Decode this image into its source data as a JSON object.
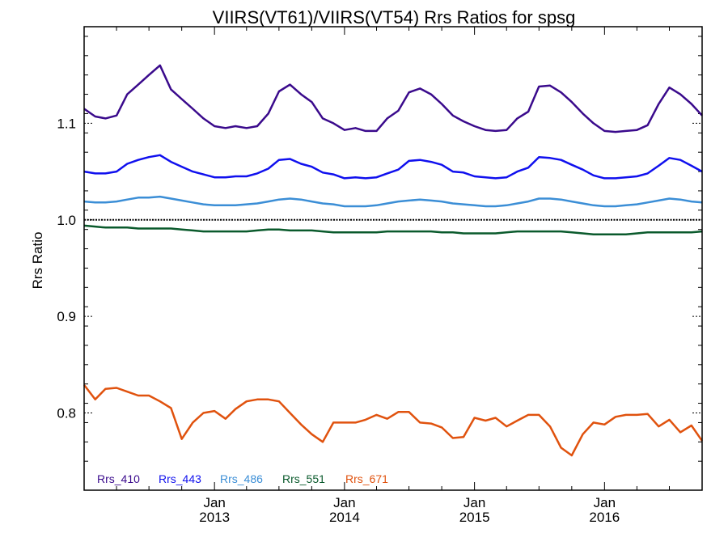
{
  "chart_data": {
    "type": "line",
    "title": "VIIRS(VT61)/VIIRS(VT54)  Rrs Ratios for spsg",
    "xlabel": "",
    "ylabel": "Rrs Ratio",
    "ylim": [
      0.72,
      1.2
    ],
    "xlim": [
      "2012-01-01",
      "2016-10-01"
    ],
    "x_ticks": [
      {
        "month": "Jan",
        "year": "2013",
        "date": "2013-01-01"
      },
      {
        "month": "Jan",
        "year": "2014",
        "date": "2014-01-01"
      },
      {
        "month": "Jan",
        "year": "2015",
        "date": "2015-01-01"
      },
      {
        "month": "Jan",
        "year": "2016",
        "date": "2016-01-01"
      }
    ],
    "y_ticks": [
      {
        "value": 0.8,
        "label": "0.8"
      },
      {
        "value": 0.9,
        "label": "0.9"
      },
      {
        "value": 1.0,
        "label": "1.0"
      },
      {
        "value": 1.1,
        "label": "1.1"
      }
    ],
    "reference_line": 1.0,
    "x": [
      "2012-01-01",
      "2012-02-01",
      "2012-03-01",
      "2012-04-01",
      "2012-05-01",
      "2012-06-01",
      "2012-07-01",
      "2012-08-01",
      "2012-09-01",
      "2012-10-01",
      "2012-11-01",
      "2012-12-01",
      "2013-01-01",
      "2013-02-01",
      "2013-03-01",
      "2013-04-01",
      "2013-05-01",
      "2013-06-01",
      "2013-07-01",
      "2013-08-01",
      "2013-09-01",
      "2013-10-01",
      "2013-11-01",
      "2013-12-01",
      "2014-01-01",
      "2014-02-01",
      "2014-03-01",
      "2014-04-01",
      "2014-05-01",
      "2014-06-01",
      "2014-07-01",
      "2014-08-01",
      "2014-09-01",
      "2014-10-01",
      "2014-11-01",
      "2014-12-01",
      "2015-01-01",
      "2015-02-01",
      "2015-03-01",
      "2015-04-01",
      "2015-05-01",
      "2015-06-01",
      "2015-07-01",
      "2015-08-01",
      "2015-09-01",
      "2015-10-01",
      "2015-11-01",
      "2015-12-01",
      "2016-01-01",
      "2016-02-01",
      "2016-03-01",
      "2016-04-01",
      "2016-05-01",
      "2016-06-01",
      "2016-07-01",
      "2016-08-01",
      "2016-09-01",
      "2016-10-01"
    ],
    "series": [
      {
        "name": "Rrs_410",
        "color": "#3a0a8c",
        "values": [
          1.115,
          1.107,
          1.105,
          1.108,
          1.13,
          1.14,
          1.15,
          1.16,
          1.135,
          1.125,
          1.115,
          1.105,
          1.097,
          1.095,
          1.097,
          1.095,
          1.097,
          1.11,
          1.133,
          1.14,
          1.13,
          1.122,
          1.105,
          1.1,
          1.093,
          1.095,
          1.092,
          1.092,
          1.105,
          1.113,
          1.132,
          1.136,
          1.13,
          1.12,
          1.108,
          1.102,
          1.097,
          1.093,
          1.092,
          1.093,
          1.105,
          1.112,
          1.138,
          1.139,
          1.132,
          1.122,
          1.11,
          1.1,
          1.092,
          1.091,
          1.092,
          1.093,
          1.098,
          1.12,
          1.137,
          1.13,
          1.12,
          1.108
        ]
      },
      {
        "name": "Rrs_443",
        "color": "#1010ee",
        "values": [
          1.05,
          1.048,
          1.048,
          1.05,
          1.058,
          1.062,
          1.065,
          1.067,
          1.06,
          1.055,
          1.05,
          1.047,
          1.044,
          1.044,
          1.045,
          1.045,
          1.048,
          1.053,
          1.062,
          1.063,
          1.058,
          1.055,
          1.049,
          1.047,
          1.043,
          1.044,
          1.043,
          1.044,
          1.048,
          1.052,
          1.061,
          1.062,
          1.06,
          1.057,
          1.05,
          1.049,
          1.045,
          1.044,
          1.043,
          1.044,
          1.05,
          1.054,
          1.065,
          1.064,
          1.062,
          1.057,
          1.052,
          1.046,
          1.043,
          1.043,
          1.044,
          1.045,
          1.048,
          1.056,
          1.064,
          1.062,
          1.056,
          1.05
        ]
      },
      {
        "name": "Rrs_486",
        "color": "#3b8ed6",
        "values": [
          1.019,
          1.018,
          1.018,
          1.019,
          1.021,
          1.023,
          1.023,
          1.024,
          1.022,
          1.02,
          1.018,
          1.016,
          1.015,
          1.015,
          1.015,
          1.016,
          1.017,
          1.019,
          1.021,
          1.022,
          1.021,
          1.019,
          1.017,
          1.016,
          1.014,
          1.014,
          1.014,
          1.015,
          1.017,
          1.019,
          1.02,
          1.021,
          1.02,
          1.019,
          1.017,
          1.016,
          1.015,
          1.014,
          1.014,
          1.015,
          1.017,
          1.019,
          1.022,
          1.022,
          1.021,
          1.019,
          1.017,
          1.015,
          1.014,
          1.014,
          1.015,
          1.016,
          1.018,
          1.02,
          1.022,
          1.021,
          1.019,
          1.018
        ]
      },
      {
        "name": "Rrs_551",
        "color": "#0a5a2c",
        "values": [
          0.994,
          0.993,
          0.992,
          0.992,
          0.992,
          0.991,
          0.991,
          0.991,
          0.991,
          0.99,
          0.989,
          0.988,
          0.988,
          0.988,
          0.988,
          0.988,
          0.989,
          0.99,
          0.99,
          0.989,
          0.989,
          0.989,
          0.988,
          0.987,
          0.987,
          0.987,
          0.987,
          0.987,
          0.988,
          0.988,
          0.988,
          0.988,
          0.988,
          0.987,
          0.987,
          0.986,
          0.986,
          0.986,
          0.986,
          0.987,
          0.988,
          0.988,
          0.988,
          0.988,
          0.988,
          0.987,
          0.986,
          0.985,
          0.985,
          0.985,
          0.985,
          0.986,
          0.987,
          0.987,
          0.987,
          0.987,
          0.987,
          0.988
        ]
      },
      {
        "name": "Rrs_671",
        "color": "#e0520e",
        "values": [
          0.829,
          0.814,
          0.825,
          0.826,
          0.822,
          0.818,
          0.818,
          0.812,
          0.805,
          0.773,
          0.79,
          0.8,
          0.802,
          0.794,
          0.804,
          0.812,
          0.814,
          0.814,
          0.812,
          0.8,
          0.788,
          0.778,
          0.77,
          0.79,
          0.79,
          0.79,
          0.793,
          0.798,
          0.794,
          0.801,
          0.801,
          0.79,
          0.789,
          0.785,
          0.774,
          0.775,
          0.795,
          0.792,
          0.795,
          0.786,
          0.792,
          0.798,
          0.798,
          0.786,
          0.764,
          0.756,
          0.778,
          0.79,
          0.788,
          0.796,
          0.798,
          0.798,
          0.799,
          0.786,
          0.793,
          0.78,
          0.787,
          0.771
        ]
      }
    ],
    "legend": [
      "Rrs_410",
      "Rrs_443",
      "Rrs_486",
      "Rrs_551",
      "Rrs_671"
    ],
    "legend_placement": "bottom-left",
    "grid": false
  }
}
